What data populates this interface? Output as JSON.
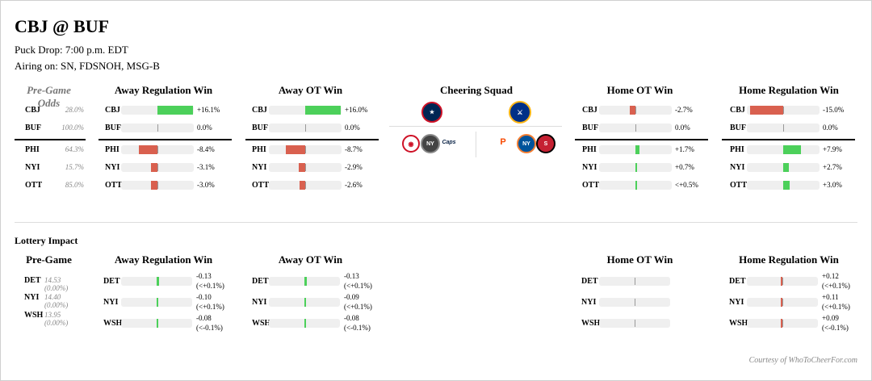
{
  "header": {
    "matchup": "CBJ @ BUF",
    "puck_drop": "Puck Drop: 7:00 p.m. EDT",
    "airing": "Airing on: SN, FDSNOH, MSG-B"
  },
  "odds_section": {
    "pre_game_label": "Pre-Game Odds",
    "columns": [
      "Away Regulation Win",
      "Away OT Win",
      "Cheering Squad",
      "Home OT Win",
      "Home Regulation Win"
    ],
    "teams": [
      "CBJ",
      "BUF",
      "PHI",
      "NYI",
      "OTT"
    ],
    "pre_game": [
      "28.0%",
      "100.0%",
      "64.3%",
      "15.7%",
      "85.0%"
    ],
    "away_reg": {
      "values": [
        "+16.1%",
        "0.0%",
        "-8.4%",
        "-3.1%",
        "-3.0%"
      ],
      "levels": [
        16.1,
        0,
        -8.4,
        -3.1,
        -3.0
      ]
    },
    "away_ot": {
      "values": [
        "+16.0%",
        "0.0%",
        "-8.7%",
        "-2.9%",
        "-2.6%"
      ],
      "levels": [
        16.0,
        0,
        -8.7,
        -2.9,
        -2.6
      ]
    },
    "home_ot": {
      "values": [
        "-2.7%",
        "0.0%",
        "+1.7%",
        "+0.7%",
        "<+0.5%"
      ],
      "levels": [
        -2.7,
        0,
        1.7,
        0.7,
        0.3
      ]
    },
    "home_reg": {
      "values": [
        "-15.0%",
        "0.0%",
        "+7.9%",
        "+2.7%",
        "+3.0%"
      ],
      "levels": [
        -15.0,
        0,
        7.9,
        2.7,
        3.0
      ]
    },
    "cheering_top": [
      "columbus-blue-jackets-logo",
      "buffalo-sabres-logo"
    ],
    "cheering_left": [
      "detroit-red-wings-logo",
      "new-york-islanders-logo",
      "washington-capitals-logo"
    ],
    "cheering_right": [
      "philadelphia-flyers-logo",
      "new-york-islanders-logo",
      "ottawa-senators-logo"
    ]
  },
  "lottery": {
    "title": "Lottery Impact",
    "pre_game_label": "Pre-Game",
    "columns": [
      "Away Regulation Win",
      "Away OT Win",
      "Home OT Win",
      "Home Regulation Win"
    ],
    "teams": [
      "DET",
      "NYI",
      "WSH"
    ],
    "pre_game": [
      "14.53 (0.00%)",
      "14.40 (0.00%)",
      "13.95 (0.00%)"
    ],
    "away_reg": {
      "v1": [
        "-0.13",
        "-0.10",
        "-0.08"
      ],
      "v2": [
        "(<+0.1%)",
        "(<+0.1%)",
        "(<-0.1%)"
      ],
      "levels": [
        0.13,
        0.1,
        0.08
      ]
    },
    "away_ot": {
      "v1": [
        "-0.13",
        "-0.09",
        "-0.08"
      ],
      "v2": [
        "(<+0.1%)",
        "(<+0.1%)",
        "(<-0.1%)"
      ],
      "levels": [
        0.13,
        0.09,
        0.08
      ]
    },
    "home_ot": {
      "levels": [
        0,
        0,
        0
      ]
    },
    "home_reg": {
      "v1": [
        "+0.12",
        "+0.11",
        "+0.09"
      ],
      "v2": [
        "(<+0.1%)",
        "(<+0.1%)",
        "(<-0.1%)"
      ],
      "levels": [
        -0.12,
        -0.11,
        -0.09
      ]
    }
  },
  "colors": {
    "positive": "#4cd05a",
    "negative": "#d9604f",
    "track": "#efefef"
  },
  "footer": {
    "courtesy": "Courtesy of WhoToCheerFor.com"
  }
}
